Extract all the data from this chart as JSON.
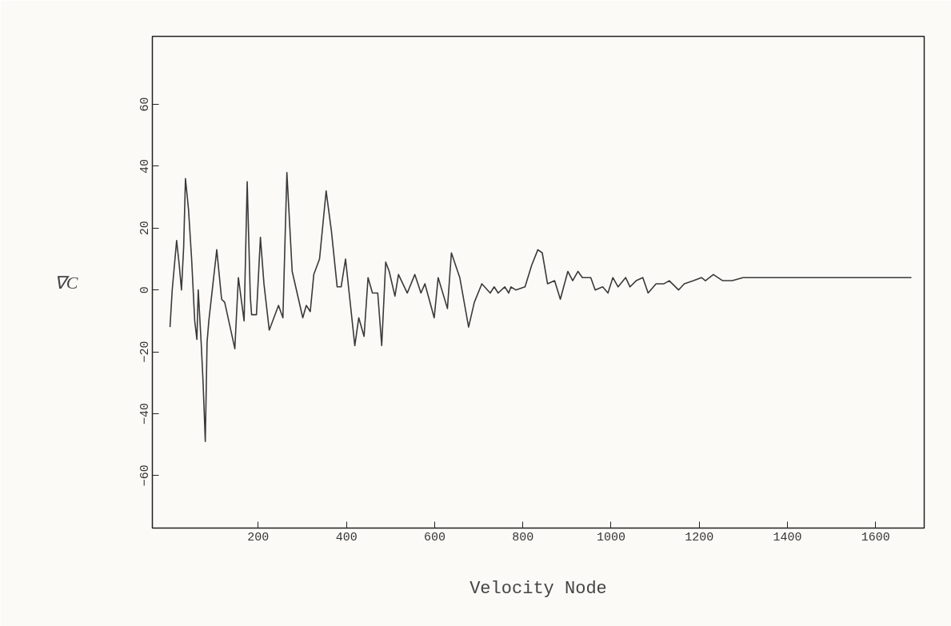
{
  "chart_data": {
    "type": "line",
    "xlabel": "Velocity Node",
    "ylabel": "∇C",
    "x": [
      0,
      5,
      15,
      21,
      26,
      31,
      35,
      42,
      49,
      56,
      61,
      64,
      71,
      75,
      80,
      84,
      88,
      106,
      117,
      124,
      147,
      155,
      168,
      175,
      182,
      185,
      196,
      205,
      213,
      225,
      246,
      256,
      265,
      277,
      301,
      309,
      318,
      326,
      339,
      354,
      366,
      379,
      388,
      398,
      419,
      428,
      440,
      449,
      459,
      471,
      480,
      489,
      497,
      510,
      518,
      538,
      555,
      569,
      578,
      599,
      608,
      629,
      638,
      657,
      677,
      690,
      707,
      726,
      735,
      744,
      759,
      768,
      773,
      784,
      805,
      820,
      834,
      844,
      856,
      872,
      885,
      902,
      913,
      925,
      935,
      954,
      964,
      981,
      993,
      1004,
      1016,
      1033,
      1043,
      1057,
      1072,
      1084,
      1102,
      1120,
      1132,
      1153,
      1166,
      1187,
      1205,
      1214,
      1232,
      1253,
      1275,
      1299,
      1681
    ],
    "values": [
      -12,
      0,
      16,
      8,
      0,
      14,
      36,
      26,
      10,
      -10,
      -16,
      0,
      -18,
      -30,
      -49,
      -17,
      -10,
      13,
      -3,
      -4,
      -19,
      4,
      -10,
      35,
      -2,
      -8,
      -8,
      17,
      2,
      -13,
      -5,
      -9,
      38,
      6,
      -9,
      -5,
      -7,
      5,
      10,
      32,
      19,
      1,
      1,
      10,
      -18,
      -9,
      -15,
      4,
      -1,
      -1,
      -18,
      9,
      6,
      -2,
      5,
      -1,
      5,
      -1,
      2,
      -9,
      4,
      -6,
      12,
      4,
      -12,
      -4,
      2,
      -1,
      1,
      -1,
      1,
      -1,
      1,
      0,
      1,
      8,
      13,
      12,
      2,
      3,
      -3,
      6,
      3,
      6,
      4,
      4,
      0,
      1,
      -1,
      4,
      1,
      4,
      1,
      3,
      4,
      -1,
      2,
      2,
      3,
      0,
      2,
      3,
      4,
      3,
      5,
      3,
      3,
      4,
      4
    ],
    "color": "#3a3a3a",
    "xlim": [
      -40,
      1710
    ],
    "ylim": [
      -77,
      82
    ],
    "xticks": [
      200,
      400,
      600,
      800,
      1000,
      1200,
      1400,
      1600
    ],
    "yticks": [
      -60,
      -40,
      -20,
      0,
      20,
      40,
      60
    ],
    "grid": false,
    "line_style": "solid",
    "marker": "none"
  }
}
